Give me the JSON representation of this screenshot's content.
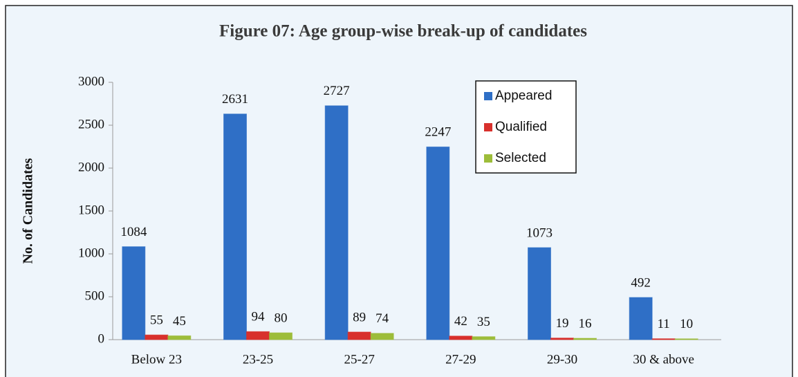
{
  "chart_data": {
    "type": "bar",
    "title": "Figure 07: Age group-wise break-up of candidates",
    "y_label": "No. of Candidates",
    "categories": [
      "Below 23",
      "23-25",
      "25-27",
      "27-29",
      "29-30",
      "30 & above"
    ],
    "series": [
      {
        "name": "Appeared",
        "color": "#2f6fc6",
        "values": [
          1084,
          2631,
          2727,
          2247,
          1073,
          492
        ]
      },
      {
        "name": "Qualified",
        "color": "#d8302c",
        "values": [
          55,
          94,
          89,
          42,
          19,
          11
        ]
      },
      {
        "name": "Selected",
        "color": "#9dbd3a",
        "values": [
          45,
          80,
          74,
          35,
          16,
          10
        ]
      }
    ],
    "ylim": [
      0,
      3000
    ],
    "yticks": [
      0,
      500,
      1000,
      1500,
      2000,
      2500,
      3000
    ],
    "legend": "top-right"
  }
}
